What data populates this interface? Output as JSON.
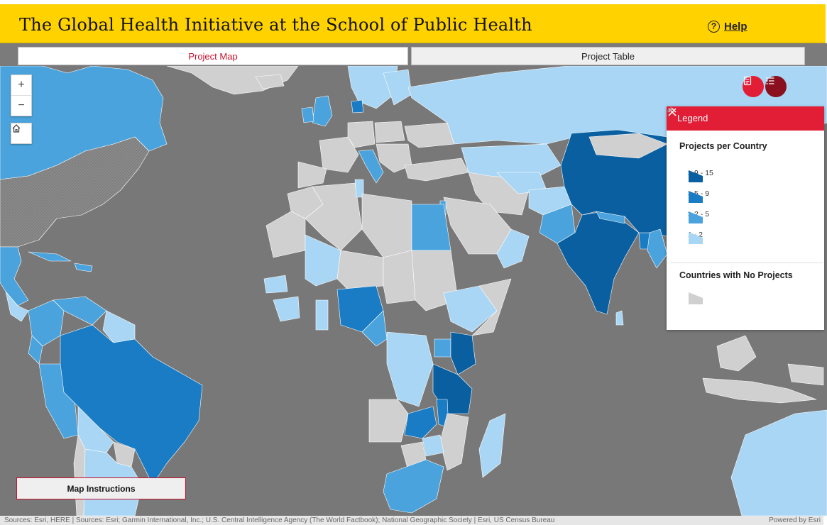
{
  "header": {
    "title": "The Global Health Initiative at the School of Public Health",
    "help_label": "Help",
    "help_icon": "question-circle-icon",
    "bg_color": "#ffd200"
  },
  "tabs": [
    {
      "label": "Project Map",
      "active": true
    },
    {
      "label": "Project Table",
      "active": false
    }
  ],
  "map_controls": {
    "zoom_in": "+",
    "zoom_out": "−",
    "home_icon": "home-icon",
    "legend_toggle_icon": "list-icon",
    "details_toggle_icon": "document-icon"
  },
  "legend": {
    "title": "Legend",
    "projects_heading": "Projects per Country",
    "classes": [
      {
        "label": "> 9 - 15",
        "color": "#0a5fa0"
      },
      {
        "label": "> 5 - 9",
        "color": "#1a7cc4"
      },
      {
        "label": "> 2 - 5",
        "color": "#4aa3dc"
      },
      {
        "label": "1 - 2",
        "color": "#a9d6f5"
      }
    ],
    "no_projects_heading": "Countries with No Projects",
    "no_projects_color": "#d0d0d0"
  },
  "instructions_button": "Map Instructions",
  "attribution": "Sources: Esri, HERE | Sources: Esri; Garmin International, Inc.; U.S. Central Intelligence Agency (The World Factbook); National Geographic Society | Esri, US Census Bureau",
  "powered_by": "Powered by Esri",
  "colors": {
    "accent": "#e21e36",
    "ocean": "#787878",
    "land_no_projects": "#d0d0d0"
  }
}
